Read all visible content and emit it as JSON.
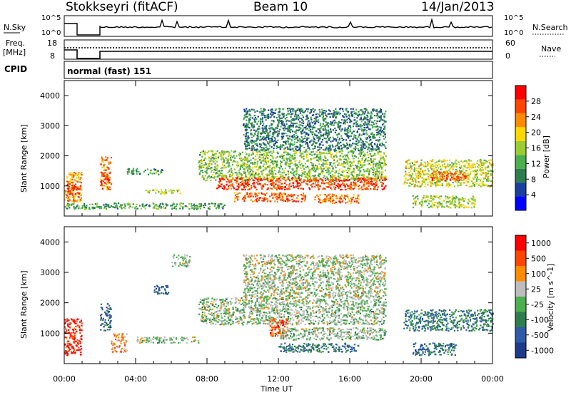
{
  "header": {
    "station": "Stokkseyri (fitACF)",
    "beam": "Beam 10",
    "date": "14/Jan/2013"
  },
  "noise_panel": {
    "left_label": "N.Sky",
    "right_label": "N.Search",
    "left_ticks": [
      "10^5",
      "10^0"
    ],
    "right_ticks": [
      "10^5",
      "10^0"
    ]
  },
  "freq_panel": {
    "left_label_line1": "Freq.",
    "left_label_line2": "[MHz]",
    "left_ticks": [
      "18",
      "8"
    ],
    "right_label": "Nave",
    "right_ticks": [
      "60",
      "0"
    ]
  },
  "cpid": {
    "label": "CPID",
    "text": "normal (fast) 151"
  },
  "colors": {
    "noise_line": "#000000",
    "power_scale": [
      "#0000ff",
      "#1a3fa0",
      "#2e7d4f",
      "#4caf50",
      "#9acd32",
      "#ffd700",
      "#ff8c00",
      "#ff4500",
      "#ff0000"
    ],
    "velocity_scale": [
      "#1e3a8a",
      "#2f5aa8",
      "#2e7d4f",
      "#4caf50",
      "#bdbdbd",
      "#ff8c00",
      "#ff4500",
      "#ff0000"
    ]
  },
  "chart_data": [
    {
      "type": "heatmap",
      "name": "power",
      "ylabel": "Slant Range [km]",
      "xlabel": "",
      "y_ticks": [
        "1000",
        "2000",
        "3000",
        "4000"
      ],
      "x_ticks": [
        "00:00",
        "04:00",
        "08:00",
        "12:00",
        "16:00",
        "20:00",
        "00:00"
      ],
      "colorbar_label": "Power [dB]",
      "colorbar_ticks": [
        "4",
        "8",
        "12",
        "16",
        "20",
        "24",
        "28"
      ],
      "bands": [
        {
          "t0": 0.0,
          "t1": 0.95,
          "r0": 500,
          "r1": 1500,
          "level": 0.75
        },
        {
          "t0": 0.1,
          "t1": 0.9,
          "r0": 750,
          "r1": 1100,
          "level": 0.95
        },
        {
          "t0": 2.0,
          "t1": 2.6,
          "r0": 900,
          "r1": 2000,
          "level": 0.8
        },
        {
          "t0": 2.0,
          "t1": 2.5,
          "r0": 1100,
          "r1": 1500,
          "level": 0.95
        },
        {
          "t0": 3.5,
          "t1": 5.5,
          "r0": 1400,
          "r1": 1600,
          "level": 0.3
        },
        {
          "t0": 4.5,
          "t1": 6.5,
          "r0": 750,
          "r1": 900,
          "level": 0.55
        },
        {
          "t0": 7.5,
          "t1": 18.0,
          "r0": 1200,
          "r1": 2200,
          "level": 0.45
        },
        {
          "t0": 8.5,
          "t1": 18.0,
          "r0": 900,
          "r1": 1300,
          "level": 0.9
        },
        {
          "t0": 9.5,
          "t1": 13.5,
          "r0": 500,
          "r1": 800,
          "level": 0.85
        },
        {
          "t0": 14.0,
          "t1": 16.5,
          "r0": 450,
          "r1": 750,
          "level": 0.8
        },
        {
          "t0": 10.0,
          "t1": 18.0,
          "r0": 2200,
          "r1": 3600,
          "level": 0.25
        },
        {
          "t0": 19.0,
          "t1": 24.0,
          "r0": 1000,
          "r1": 1900,
          "level": 0.55
        },
        {
          "t0": 20.5,
          "t1": 22.5,
          "r0": 1200,
          "r1": 1500,
          "level": 0.85
        },
        {
          "t0": 19.5,
          "t1": 23.0,
          "r0": 300,
          "r1": 700,
          "level": 0.5
        },
        {
          "t0": 0.0,
          "t1": 9.0,
          "r0": 250,
          "r1": 450,
          "level": 0.35
        }
      ]
    },
    {
      "type": "heatmap",
      "name": "velocity",
      "ylabel": "Slant Range [km]",
      "xlabel": "Time UT",
      "y_ticks": [
        "1000",
        "2000",
        "3000",
        "4000"
      ],
      "x_ticks": [
        "00:00",
        "04:00",
        "08:00",
        "12:00",
        "16:00",
        "20:00",
        "00:00"
      ],
      "colorbar_label": "Velocity [m s^-1]",
      "colorbar_ticks": [
        "1000",
        "500",
        "100",
        "25",
        "-25",
        "-100",
        "-500",
        "-1000"
      ],
      "bands": [
        {
          "t0": 0.0,
          "t1": 0.95,
          "r0": 300,
          "r1": 1500,
          "level": 0.05
        },
        {
          "t0": 2.0,
          "t1": 2.6,
          "r0": 1100,
          "r1": 2000,
          "level": 0.85
        },
        {
          "t0": 2.6,
          "t1": 3.5,
          "r0": 400,
          "r1": 1000,
          "level": 0.3
        },
        {
          "t0": 4.0,
          "t1": 7.5,
          "r0": 700,
          "r1": 900,
          "level": 0.5
        },
        {
          "t0": 5.0,
          "t1": 5.8,
          "r0": 2300,
          "r1": 2600,
          "level": 0.85
        },
        {
          "t0": 7.5,
          "t1": 18.0,
          "r0": 1300,
          "r1": 2200,
          "level": 0.5
        },
        {
          "t0": 10.0,
          "t1": 18.0,
          "r0": 2200,
          "r1": 3600,
          "level": 0.48
        },
        {
          "t0": 11.5,
          "t1": 12.5,
          "r0": 900,
          "r1": 1500,
          "level": 0.15
        },
        {
          "t0": 12.0,
          "t1": 18.0,
          "r0": 800,
          "r1": 1200,
          "level": 0.5
        },
        {
          "t0": 12.0,
          "t1": 16.5,
          "r0": 400,
          "r1": 700,
          "level": 0.78
        },
        {
          "t0": 19.0,
          "t1": 24.0,
          "r0": 1100,
          "r1": 1800,
          "level": 0.75
        },
        {
          "t0": 19.5,
          "t1": 22.0,
          "r0": 300,
          "r1": 700,
          "level": 0.78
        },
        {
          "t0": 6.0,
          "t1": 7.0,
          "r0": 3200,
          "r1": 3600,
          "level": 0.5
        }
      ]
    }
  ]
}
